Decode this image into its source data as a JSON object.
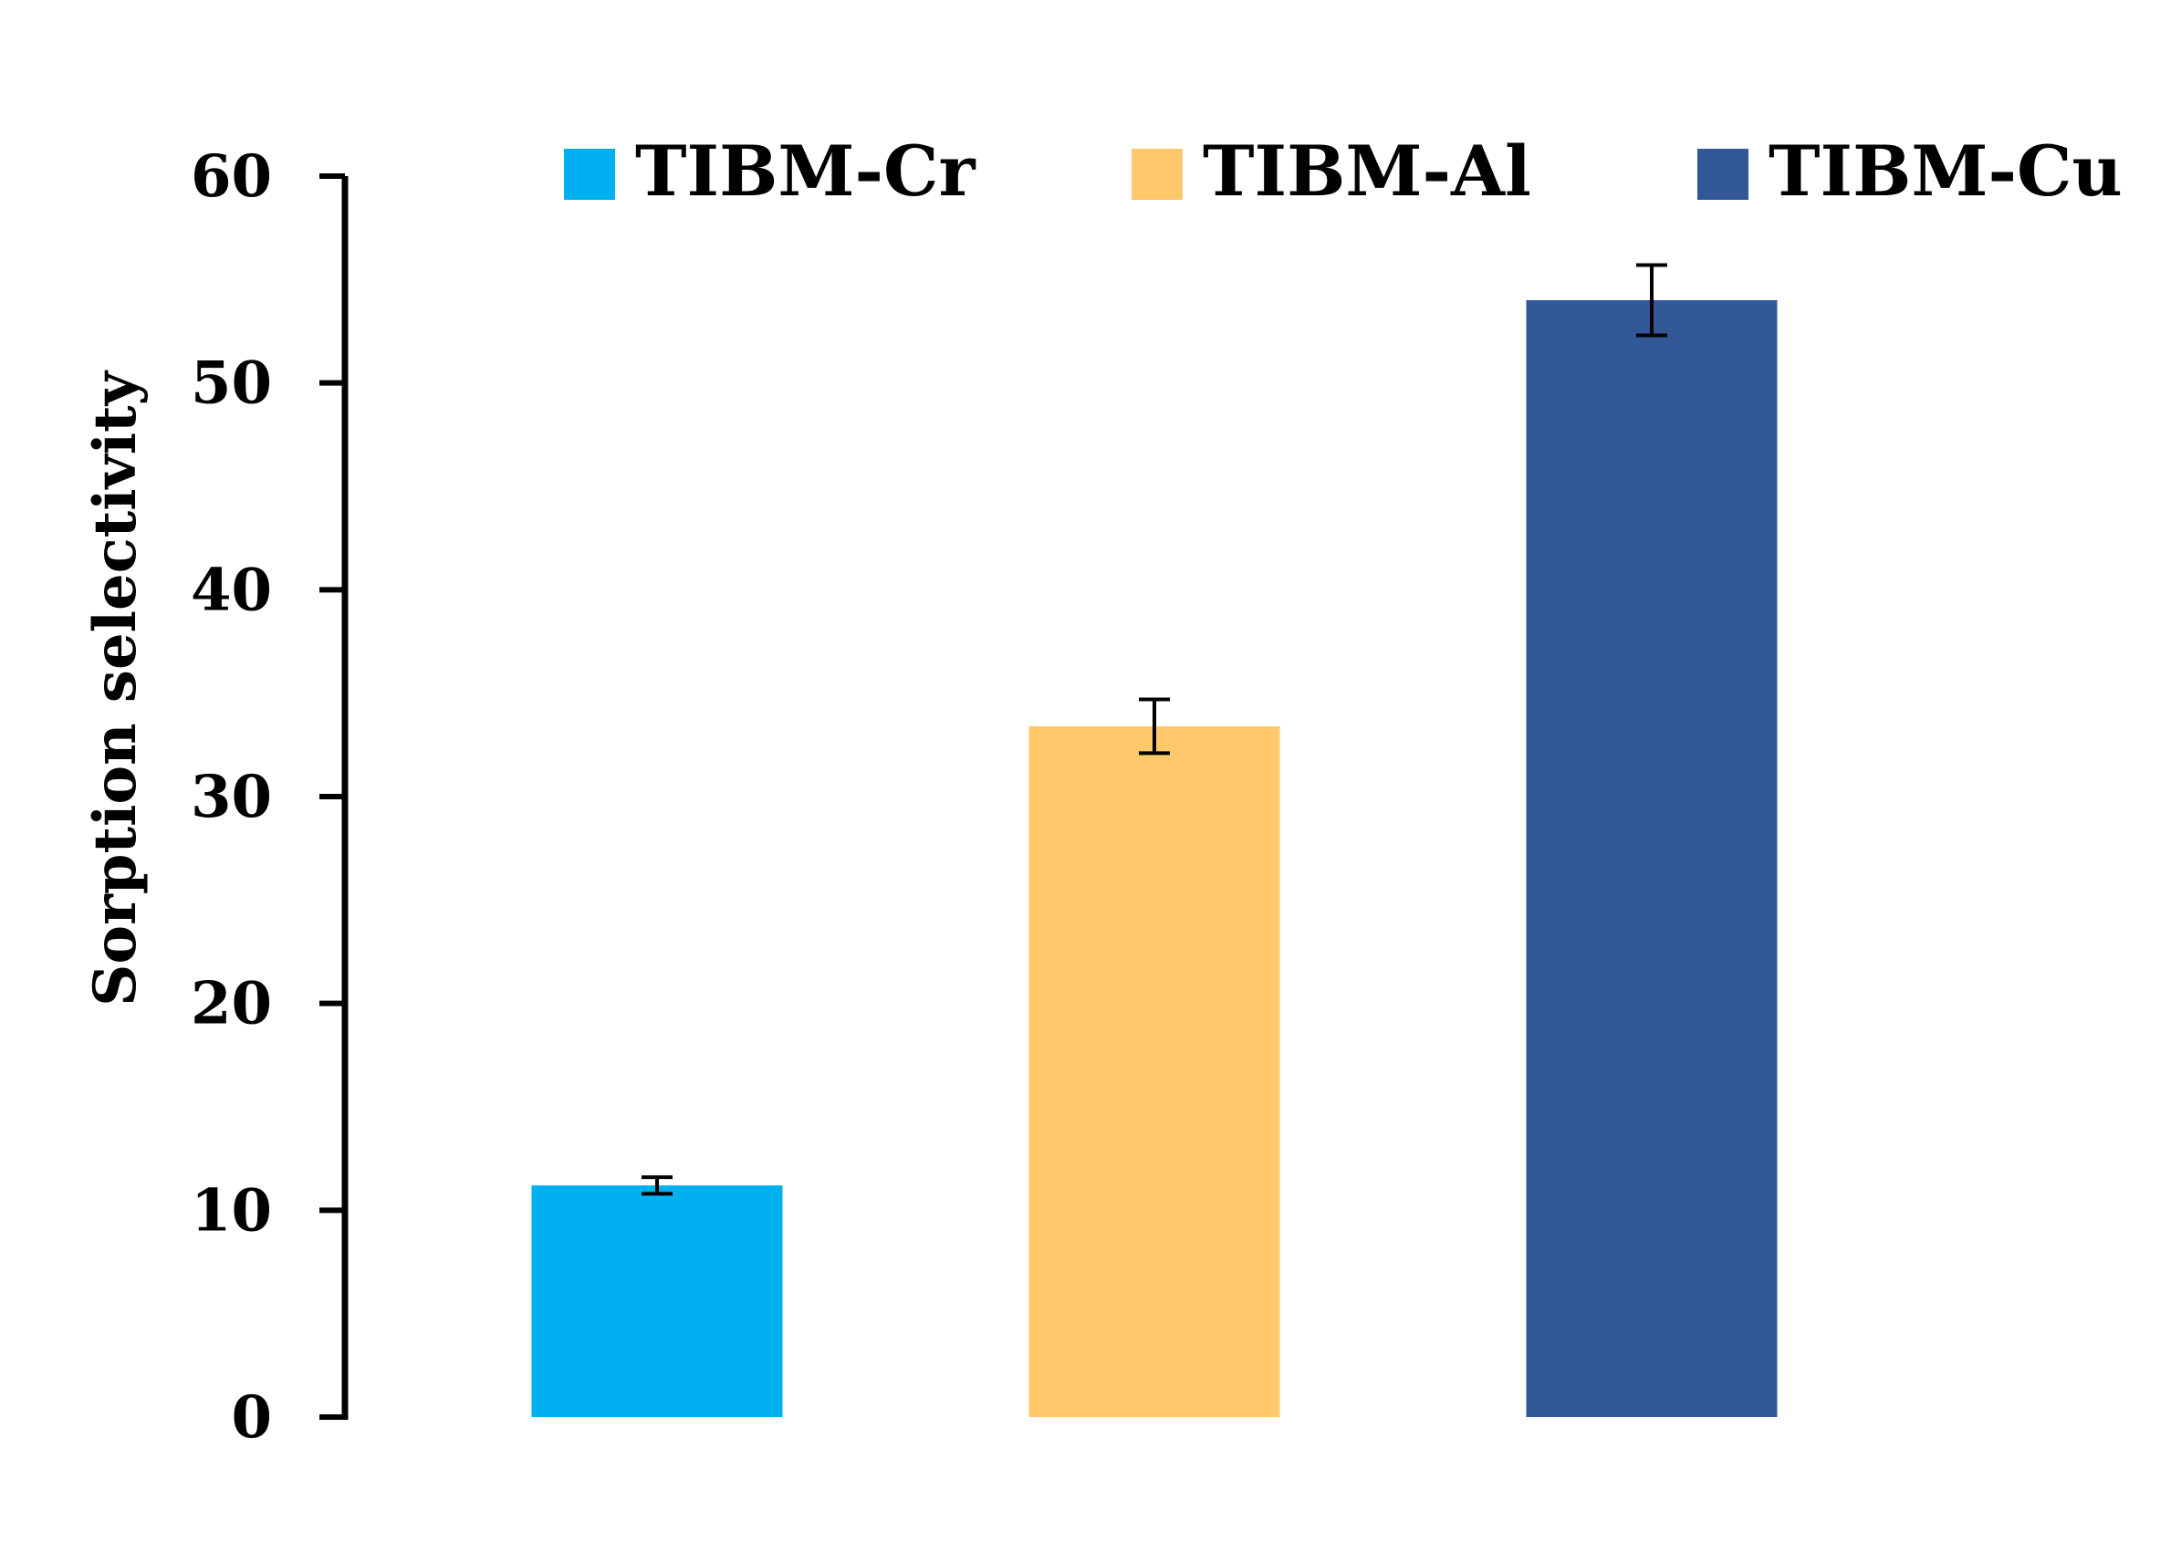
{
  "chart_data": {
    "type": "bar",
    "categories": [
      "TIBM-Cr",
      "TIBM-Al",
      "TIBM-Cu"
    ],
    "values": [
      11.2,
      33.4,
      54.0
    ],
    "errors": [
      0.4,
      1.3,
      1.7
    ],
    "colors": [
      "#00B0F0",
      "#FFC96B",
      "#335897"
    ],
    "title": "",
    "xlabel": "",
    "ylabel": "Sorption selectivity",
    "ylim": [
      0,
      60
    ],
    "yticks": [
      0,
      10,
      20,
      30,
      40,
      50,
      60
    ],
    "grid": false,
    "legend": {
      "position": "top",
      "entries": [
        "TIBM-Cr",
        "TIBM-Al",
        "TIBM-Cu"
      ]
    }
  }
}
